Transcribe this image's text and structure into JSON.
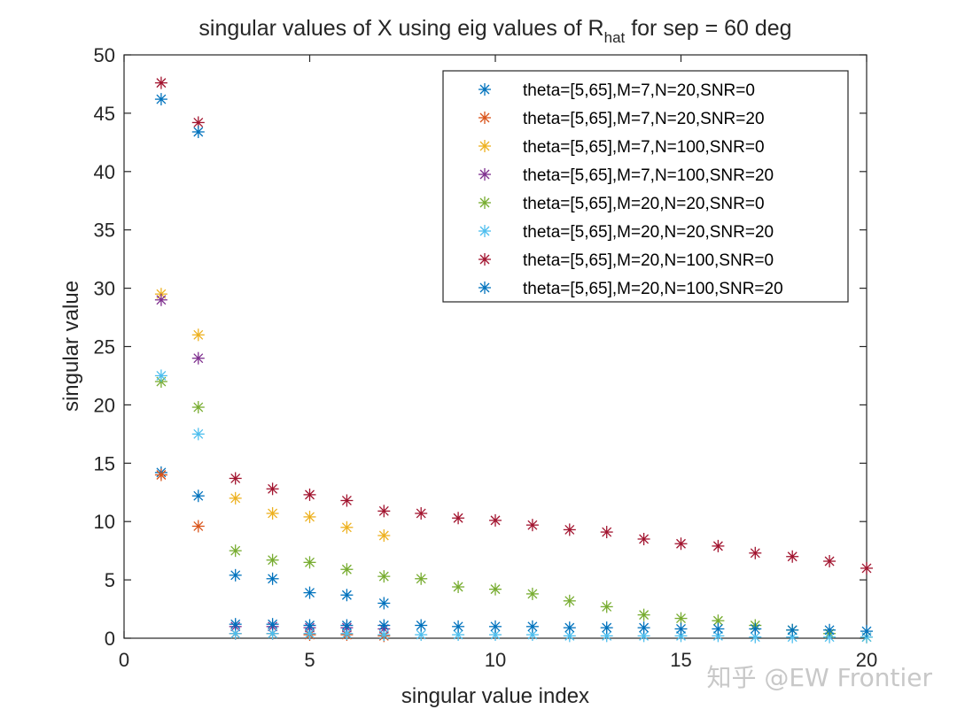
{
  "chart_data": {
    "type": "scatter",
    "title": "singular values of X using eig values of R",
    "title_subscript": "hat",
    "title_suffix": " for sep = 60 deg",
    "xlabel": "singular value index",
    "ylabel": "singular value",
    "xlim": [
      0,
      20
    ],
    "ylim": [
      0,
      50
    ],
    "xticks": [
      0,
      5,
      10,
      15,
      20
    ],
    "yticks": [
      0,
      5,
      10,
      15,
      20,
      25,
      30,
      35,
      40,
      45,
      50
    ],
    "grid": false,
    "legend_position": "top-right",
    "marker": "asterisk",
    "series": [
      {
        "name": "theta=[5,65],M=7,N=20,SNR=0",
        "color": "#0072BD",
        "x": [
          1,
          2,
          3,
          4,
          5,
          6,
          7
        ],
        "values": [
          14.2,
          12.2,
          5.4,
          5.1,
          3.9,
          3.7,
          3.0
        ]
      },
      {
        "name": "theta=[5,65],M=7,N=20,SNR=20",
        "color": "#D95319",
        "x": [
          1,
          2,
          3,
          4,
          5,
          6,
          7
        ],
        "values": [
          14.0,
          9.6,
          0.4,
          0.4,
          0.3,
          0.3,
          0.2
        ]
      },
      {
        "name": "theta=[5,65],M=7,N=100,SNR=0",
        "color": "#EDB120",
        "x": [
          1,
          2,
          3,
          4,
          5,
          6,
          7
        ],
        "values": [
          29.5,
          26.0,
          12.0,
          10.7,
          10.4,
          9.5,
          8.8
        ]
      },
      {
        "name": "theta=[5,65],M=7,N=100,SNR=20",
        "color": "#7E2F8E",
        "x": [
          1,
          2,
          3,
          4,
          5,
          6,
          7
        ],
        "values": [
          29.0,
          24.0,
          1.0,
          1.0,
          0.9,
          0.9,
          0.8
        ]
      },
      {
        "name": "theta=[5,65],M=20,N=20,SNR=0",
        "color": "#77AC30",
        "x": [
          1,
          2,
          3,
          4,
          5,
          6,
          7,
          8,
          9,
          10,
          11,
          12,
          13,
          14,
          15,
          16,
          17,
          18,
          19,
          20
        ],
        "values": [
          22.0,
          19.8,
          7.5,
          6.7,
          6.5,
          5.9,
          5.3,
          5.1,
          4.4,
          4.2,
          3.8,
          3.2,
          2.7,
          2.0,
          1.7,
          1.5,
          1.1,
          0.7,
          0.4,
          0.1
        ]
      },
      {
        "name": "theta=[5,65],M=20,N=20,SNR=20",
        "color": "#4DBEEE",
        "x": [
          1,
          2,
          3,
          4,
          5,
          6,
          7,
          8,
          9,
          10,
          11,
          12,
          13,
          14,
          15,
          16,
          17,
          18,
          19,
          20
        ],
        "values": [
          22.5,
          17.5,
          0.4,
          0.4,
          0.4,
          0.4,
          0.3,
          0.3,
          0.3,
          0.3,
          0.3,
          0.2,
          0.2,
          0.2,
          0.2,
          0.2,
          0.1,
          0.1,
          0.1,
          0.1
        ]
      },
      {
        "name": "theta=[5,65],M=20,N=100,SNR=0",
        "color": "#A2142F",
        "x": [
          1,
          2,
          3,
          4,
          5,
          6,
          7,
          8,
          9,
          10,
          11,
          12,
          13,
          14,
          15,
          16,
          17,
          18,
          19,
          20
        ],
        "values": [
          47.6,
          44.2,
          13.7,
          12.8,
          12.3,
          11.8,
          10.9,
          10.7,
          10.3,
          10.1,
          9.7,
          9.3,
          9.1,
          8.5,
          8.1,
          7.9,
          7.3,
          7.0,
          6.6,
          6.0
        ]
      },
      {
        "name": "theta=[5,65],M=20,N=100,SNR=20",
        "color": "#0072BD",
        "x": [
          1,
          2,
          3,
          4,
          5,
          6,
          7,
          8,
          9,
          10,
          11,
          12,
          13,
          14,
          15,
          16,
          17,
          18,
          19,
          20
        ],
        "values": [
          46.2,
          43.4,
          1.2,
          1.2,
          1.1,
          1.1,
          1.1,
          1.1,
          1.0,
          1.0,
          1.0,
          0.9,
          0.9,
          0.9,
          0.8,
          0.8,
          0.8,
          0.7,
          0.7,
          0.6
        ]
      }
    ]
  },
  "watermark": "知乎 @EW Frontier"
}
